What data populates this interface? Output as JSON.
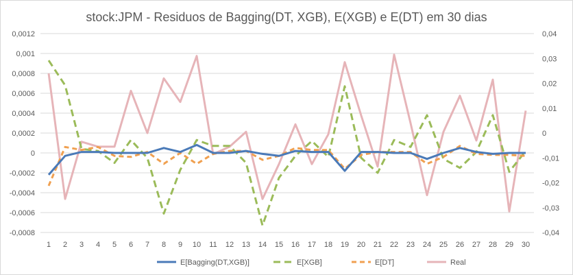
{
  "chart_data": {
    "type": "line",
    "title": "stock:JPM - Residuos de Bagging(DT, XGB), E(XGB) e E(DT) em 30 dias",
    "x": [
      "1",
      "2",
      "3",
      "4",
      "5",
      "6",
      "7",
      "8",
      "9",
      "10",
      "11",
      "12",
      "13",
      "14",
      "15",
      "16",
      "17",
      "18",
      "19",
      "20",
      "21",
      "22",
      "23",
      "24",
      "25",
      "26",
      "27",
      "28",
      "29",
      "30"
    ],
    "y_left": {
      "ylim": [
        -0.0008,
        0.0012
      ],
      "ticks": [
        "-0,0008",
        "-0,0006",
        "-0,0004",
        "-0,0002",
        "0",
        "0,0002",
        "0,0004",
        "0,0006",
        "0,0008",
        "0,001",
        "0,0012"
      ]
    },
    "y_right": {
      "ylim": [
        -0.04,
        0.04
      ],
      "ticks": [
        "-0,04",
        "-0,03",
        "-0,02",
        "-0,01",
        "0",
        "0,01",
        "0,02",
        "0,03",
        "0,04"
      ]
    },
    "grid": true,
    "legend_position": "bottom",
    "series": [
      {
        "name": "E[Bagging(DT,XGB)]",
        "axis": "left",
        "color": "#4a7ab8",
        "dash": "none",
        "width": 3,
        "values": [
          -0.00022,
          -3e-05,
          1e-05,
          1e-05,
          0.0,
          0.0,
          0.0,
          5e-05,
          1e-05,
          8e-05,
          0.0,
          0.0,
          2e-05,
          -1e-05,
          -3e-05,
          2e-05,
          1e-05,
          1e-05,
          -0.00018,
          1e-05,
          1e-05,
          0.0,
          0.0,
          -6e-05,
          0.0,
          5e-05,
          1e-05,
          -1e-05,
          0.0,
          0.0
        ]
      },
      {
        "name": "E[XGB]",
        "axis": "left",
        "color": "#9bbb59",
        "dash": "10,6",
        "width": 3,
        "values": [
          0.00093,
          0.00068,
          4e-05,
          2e-05,
          -0.0001,
          0.00013,
          -5e-05,
          -0.00061,
          -0.00017,
          0.00013,
          7e-05,
          7e-05,
          -0.0001,
          -0.00073,
          -0.00025,
          -3e-05,
          0.00012,
          -4e-05,
          0.00067,
          -5e-05,
          -0.0002,
          0.00013,
          6e-05,
          0.00038,
          -6e-05,
          -0.00015,
          1e-05,
          0.00038,
          -0.00019,
          2e-05
        ]
      },
      {
        "name": "E[DT]",
        "axis": "left",
        "color": "#f0a050",
        "dash": "7,5",
        "width": 3,
        "values": [
          -0.00033,
          6e-05,
          3e-05,
          6e-05,
          -3e-05,
          -4e-05,
          1e-05,
          -0.00011,
          0.0,
          -0.00011,
          -1e-05,
          2e-05,
          2e-05,
          -7e-05,
          -3e-05,
          5e-05,
          3e-05,
          3e-05,
          -0.00016,
          -2e-05,
          1e-05,
          1e-05,
          1e-05,
          -0.00011,
          -4e-05,
          7e-05,
          -1e-05,
          -2e-05,
          -2e-05,
          -3e-05
        ]
      },
      {
        "name": "Real",
        "axis": "right",
        "color": "#e6b4b8",
        "dash": "none",
        "width": 3,
        "values": [
          0.024,
          -0.0265,
          -0.0035,
          -0.0055,
          -0.0055,
          0.017,
          0.0,
          0.022,
          0.0125,
          0.031,
          -0.0085,
          -0.0055,
          0.0005,
          -0.0265,
          -0.0125,
          0.0035,
          -0.0125,
          -0.0005,
          0.0285,
          0.007,
          -0.0135,
          0.0315,
          0.004,
          -0.025,
          0.0005,
          0.015,
          -0.003,
          0.0215,
          -0.0315,
          0.009
        ]
      }
    ]
  }
}
